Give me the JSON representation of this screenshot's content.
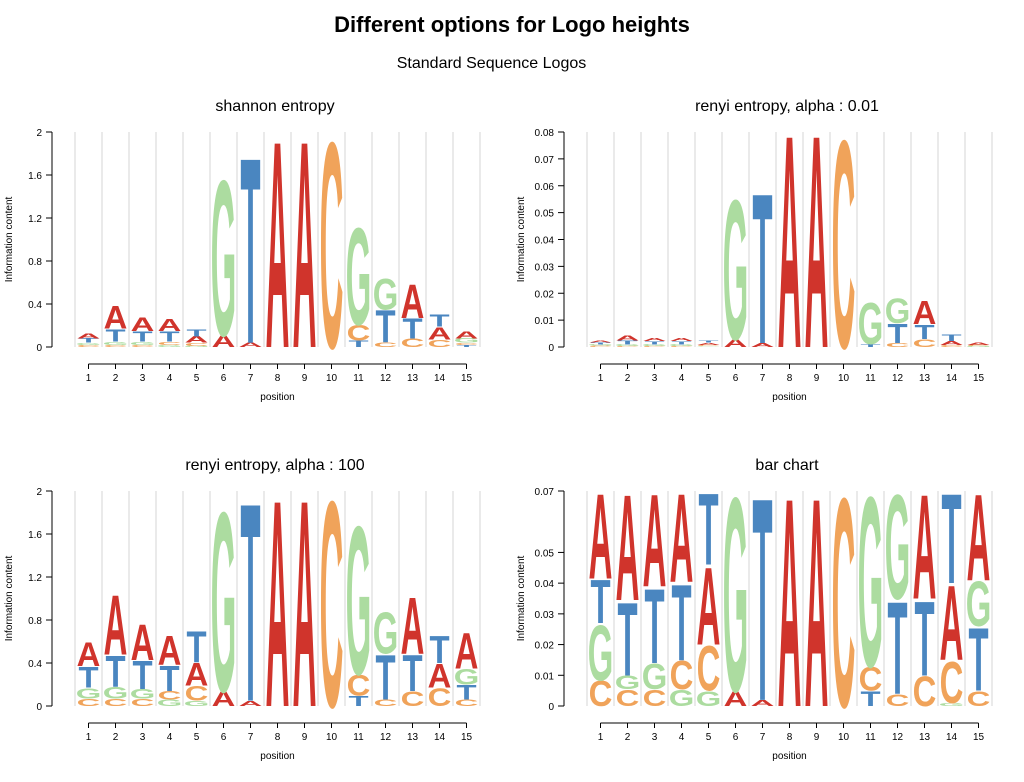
{
  "title": "Different options for Logo heights",
  "subtitle": "Standard Sequence Logos",
  "colors": {
    "A": "#d0342c",
    "C": "#f0a35a",
    "G": "#acdca0",
    "T": "#4a86c0"
  },
  "chart_data": [
    {
      "type": "sequence-logo",
      "title": "shannon entropy",
      "xlabel": "position",
      "ylabel": "Information content",
      "ylim": [
        0,
        2
      ],
      "yticks": [
        "0",
        "0.4",
        "0.8",
        "1.2",
        "1.6",
        "2"
      ],
      "ytick_values": [
        0,
        0.4,
        0.8,
        1.2,
        1.6,
        2
      ],
      "positions": [
        "1",
        "2",
        "3",
        "4",
        "5",
        "6",
        "7",
        "8",
        "9",
        "10",
        "11",
        "12",
        "13",
        "14",
        "15"
      ],
      "stacks": [
        [
          {
            "letter": "C",
            "value": 0.02
          },
          {
            "letter": "G",
            "value": 0.02
          },
          {
            "letter": "T",
            "value": 0.04
          },
          {
            "letter": "A",
            "value": 0.05
          }
        ],
        [
          {
            "letter": "C",
            "value": 0.02
          },
          {
            "letter": "G",
            "value": 0.03
          },
          {
            "letter": "T",
            "value": 0.12
          },
          {
            "letter": "A",
            "value": 0.22
          }
        ],
        [
          {
            "letter": "C",
            "value": 0.02
          },
          {
            "letter": "G",
            "value": 0.03
          },
          {
            "letter": "T",
            "value": 0.1
          },
          {
            "letter": "A",
            "value": 0.13
          }
        ],
        [
          {
            "letter": "G",
            "value": 0.02
          },
          {
            "letter": "C",
            "value": 0.03
          },
          {
            "letter": "T",
            "value": 0.1
          },
          {
            "letter": "A",
            "value": 0.12
          }
        ],
        [
          {
            "letter": "G",
            "value": 0.01
          },
          {
            "letter": "C",
            "value": 0.03
          },
          {
            "letter": "A",
            "value": 0.06
          },
          {
            "letter": "T",
            "value": 0.07
          }
        ],
        [
          {
            "letter": "A",
            "value": 0.11
          },
          {
            "letter": "G",
            "value": 1.49
          }
        ],
        [
          {
            "letter": "A",
            "value": 0.04
          },
          {
            "letter": "T",
            "value": 1.78
          }
        ],
        [
          {
            "letter": "A",
            "value": 1.98
          }
        ],
        [
          {
            "letter": "A",
            "value": 1.98
          }
        ],
        [
          {
            "letter": "C",
            "value": 1.97
          }
        ],
        [
          {
            "letter": "T",
            "value": 0.06
          },
          {
            "letter": "C",
            "value": 0.15
          },
          {
            "letter": "G",
            "value": 0.93
          }
        ],
        [
          {
            "letter": "C",
            "value": 0.04
          },
          {
            "letter": "T",
            "value": 0.31
          },
          {
            "letter": "G",
            "value": 0.3
          }
        ],
        [
          {
            "letter": "C",
            "value": 0.08
          },
          {
            "letter": "T",
            "value": 0.19
          },
          {
            "letter": "A",
            "value": 0.32
          }
        ],
        [
          {
            "letter": "C",
            "value": 0.07
          },
          {
            "letter": "A",
            "value": 0.12
          },
          {
            "letter": "T",
            "value": 0.12
          }
        ],
        [
          {
            "letter": "T",
            "value": 0.02
          },
          {
            "letter": "C",
            "value": 0.02
          },
          {
            "letter": "G",
            "value": 0.04
          },
          {
            "letter": "A",
            "value": 0.07
          }
        ]
      ]
    },
    {
      "type": "sequence-logo",
      "title": "renyi entropy, alpha : 0.01",
      "xlabel": "position",
      "ylabel": "Information content",
      "ylim": [
        0,
        0.08
      ],
      "yticks": [
        "0",
        "0.01",
        "0.02",
        "0.03",
        "0.04",
        "0.05",
        "0.06",
        "0.07",
        "0.08"
      ],
      "ytick_values": [
        0,
        0.01,
        0.02,
        0.03,
        0.04,
        0.05,
        0.06,
        0.07,
        0.08
      ],
      "positions": [
        "1",
        "2",
        "3",
        "4",
        "5",
        "6",
        "7",
        "8",
        "9",
        "10",
        "11",
        "12",
        "13",
        "14",
        "15"
      ],
      "stacks": [
        [
          {
            "letter": "C",
            "value": 0.0005
          },
          {
            "letter": "G",
            "value": 0.0005
          },
          {
            "letter": "T",
            "value": 0.0007
          },
          {
            "letter": "A",
            "value": 0.0008
          }
        ],
        [
          {
            "letter": "C",
            "value": 0.0004
          },
          {
            "letter": "G",
            "value": 0.0006
          },
          {
            "letter": "T",
            "value": 0.0015
          },
          {
            "letter": "A",
            "value": 0.002
          }
        ],
        [
          {
            "letter": "C",
            "value": 0.0004
          },
          {
            "letter": "G",
            "value": 0.0006
          },
          {
            "letter": "T",
            "value": 0.0012
          },
          {
            "letter": "A",
            "value": 0.0013
          }
        ],
        [
          {
            "letter": "C",
            "value": 0.0004
          },
          {
            "letter": "G",
            "value": 0.0006
          },
          {
            "letter": "T",
            "value": 0.0012
          },
          {
            "letter": "A",
            "value": 0.0012
          }
        ],
        [
          {
            "letter": "G",
            "value": 0.0003
          },
          {
            "letter": "C",
            "value": 0.0005
          },
          {
            "letter": "A",
            "value": 0.0008
          },
          {
            "letter": "T",
            "value": 0.0008
          }
        ],
        [
          {
            "letter": "A",
            "value": 0.003
          },
          {
            "letter": "G",
            "value": 0.0535
          }
        ],
        [
          {
            "letter": "A",
            "value": 0.0015
          },
          {
            "letter": "T",
            "value": 0.0575
          }
        ],
        [
          {
            "letter": "A",
            "value": 0.0815
          }
        ],
        [
          {
            "letter": "A",
            "value": 0.0815
          }
        ],
        [
          {
            "letter": "C",
            "value": 0.0795
          }
        ],
        [
          {
            "letter": "T",
            "value": 0.0012
          },
          {
            "letter": "G",
            "value": 0.016
          }
        ],
        [
          {
            "letter": "C",
            "value": 0.0015
          },
          {
            "letter": "T",
            "value": 0.0075
          },
          {
            "letter": "G",
            "value": 0.0095
          }
        ],
        [
          {
            "letter": "C",
            "value": 0.003
          },
          {
            "letter": "T",
            "value": 0.0055
          },
          {
            "letter": "A",
            "value": 0.009
          }
        ],
        [
          {
            "letter": "C",
            "value": 0.0008
          },
          {
            "letter": "A",
            "value": 0.0015
          },
          {
            "letter": "T",
            "value": 0.0025
          }
        ],
        [
          {
            "letter": "G",
            "value": 0.0004
          },
          {
            "letter": "C",
            "value": 0.0004
          },
          {
            "letter": "A",
            "value": 0.001
          }
        ]
      ]
    },
    {
      "type": "sequence-logo",
      "title": "renyi entropy, alpha : 100",
      "xlabel": "position",
      "ylabel": "Information content",
      "ylim": [
        0,
        2
      ],
      "yticks": [
        "0",
        "0.4",
        "0.8",
        "1.2",
        "1.6",
        "2"
      ],
      "ytick_values": [
        0,
        0.4,
        0.8,
        1.2,
        1.6,
        2
      ],
      "positions": [
        "1",
        "2",
        "3",
        "4",
        "5",
        "6",
        "7",
        "8",
        "9",
        "10",
        "11",
        "12",
        "13",
        "14",
        "15"
      ],
      "stacks": [
        [
          {
            "letter": "C",
            "value": 0.07
          },
          {
            "letter": "G",
            "value": 0.1
          },
          {
            "letter": "T",
            "value": 0.2
          },
          {
            "letter": "A",
            "value": 0.23
          }
        ],
        [
          {
            "letter": "C",
            "value": 0.07
          },
          {
            "letter": "G",
            "value": 0.11
          },
          {
            "letter": "T",
            "value": 0.3
          },
          {
            "letter": "A",
            "value": 0.57
          }
        ],
        [
          {
            "letter": "C",
            "value": 0.07
          },
          {
            "letter": "G",
            "value": 0.09
          },
          {
            "letter": "T",
            "value": 0.27
          },
          {
            "letter": "A",
            "value": 0.34
          }
        ],
        [
          {
            "letter": "G",
            "value": 0.06
          },
          {
            "letter": "C",
            "value": 0.08
          },
          {
            "letter": "T",
            "value": 0.24
          },
          {
            "letter": "A",
            "value": 0.28
          }
        ],
        [
          {
            "letter": "G",
            "value": 0.05
          },
          {
            "letter": "C",
            "value": 0.14
          },
          {
            "letter": "A",
            "value": 0.22
          },
          {
            "letter": "T",
            "value": 0.3
          }
        ],
        [
          {
            "letter": "A",
            "value": 0.14
          },
          {
            "letter": "G",
            "value": 1.72
          }
        ],
        [
          {
            "letter": "A",
            "value": 0.05
          },
          {
            "letter": "T",
            "value": 1.9
          }
        ],
        [
          {
            "letter": "A",
            "value": 1.98
          }
        ],
        [
          {
            "letter": "A",
            "value": 1.98
          }
        ],
        [
          {
            "letter": "C",
            "value": 1.97
          }
        ],
        [
          {
            "letter": "T",
            "value": 0.1
          },
          {
            "letter": "C",
            "value": 0.2
          },
          {
            "letter": "G",
            "value": 1.42
          }
        ],
        [
          {
            "letter": "C",
            "value": 0.06
          },
          {
            "letter": "T",
            "value": 0.43
          },
          {
            "letter": "G",
            "value": 0.4
          }
        ],
        [
          {
            "letter": "C",
            "value": 0.14
          },
          {
            "letter": "T",
            "value": 0.35
          },
          {
            "letter": "A",
            "value": 0.54
          }
        ],
        [
          {
            "letter": "C",
            "value": 0.17
          },
          {
            "letter": "A",
            "value": 0.23
          },
          {
            "letter": "T",
            "value": 0.26
          }
        ],
        [
          {
            "letter": "C",
            "value": 0.06
          },
          {
            "letter": "T",
            "value": 0.14
          },
          {
            "letter": "G",
            "value": 0.15
          },
          {
            "letter": "A",
            "value": 0.34
          }
        ]
      ]
    },
    {
      "type": "sequence-logo",
      "title": "bar chart",
      "xlabel": "position",
      "ylabel": "Information content",
      "ylim": [
        0,
        0.07
      ],
      "yticks": [
        "0",
        "0.01",
        "0.02",
        "0.03",
        "0.04",
        "0.05",
        "0.07"
      ],
      "ytick_values": [
        0,
        0.01,
        0.02,
        0.03,
        0.04,
        0.05,
        0.07
      ],
      "positions": [
        "1",
        "2",
        "3",
        "4",
        "5",
        "6",
        "7",
        "8",
        "9",
        "10",
        "11",
        "12",
        "13",
        "14",
        "15"
      ],
      "stacks": [
        [
          {
            "letter": "C",
            "value": 0.0085
          },
          {
            "letter": "G",
            "value": 0.0185
          },
          {
            "letter": "T",
            "value": 0.0145
          },
          {
            "letter": "A",
            "value": 0.0285
          }
        ],
        [
          {
            "letter": "C",
            "value": 0.0055
          },
          {
            "letter": "G",
            "value": 0.0045
          },
          {
            "letter": "T",
            "value": 0.0245
          },
          {
            "letter": "A",
            "value": 0.0355
          }
        ],
        [
          {
            "letter": "C",
            "value": 0.0055
          },
          {
            "letter": "G",
            "value": 0.0085
          },
          {
            "letter": "T",
            "value": 0.025
          },
          {
            "letter": "A",
            "value": 0.031
          }
        ],
        [
          {
            "letter": "G",
            "value": 0.0055
          },
          {
            "letter": "C",
            "value": 0.0095
          },
          {
            "letter": "T",
            "value": 0.0255
          },
          {
            "letter": "A",
            "value": 0.0295
          }
        ],
        [
          {
            "letter": "G",
            "value": 0.005
          },
          {
            "letter": "C",
            "value": 0.015
          },
          {
            "letter": "A",
            "value": 0.026
          },
          {
            "letter": "T",
            "value": 0.024
          }
        ],
        [
          {
            "letter": "A",
            "value": 0.005
          },
          {
            "letter": "G",
            "value": 0.065
          }
        ],
        [
          {
            "letter": "A",
            "value": 0.002
          },
          {
            "letter": "T",
            "value": 0.068
          }
        ],
        [
          {
            "letter": "A",
            "value": 0.07
          }
        ],
        [
          {
            "letter": "A",
            "value": 0.07
          }
        ],
        [
          {
            "letter": "C",
            "value": 0.07
          }
        ],
        [
          {
            "letter": "T",
            "value": 0.005
          },
          {
            "letter": "C",
            "value": 0.008
          },
          {
            "letter": "G",
            "value": 0.057
          }
        ],
        [
          {
            "letter": "C",
            "value": 0.004
          },
          {
            "letter": "T",
            "value": 0.031
          },
          {
            "letter": "G",
            "value": 0.035
          }
        ],
        [
          {
            "letter": "C",
            "value": 0.01
          },
          {
            "letter": "T",
            "value": 0.025
          },
          {
            "letter": "A",
            "value": 0.035
          }
        ],
        [
          {
            "letter": "G",
            "value": 0.001
          },
          {
            "letter": "C",
            "value": 0.014
          },
          {
            "letter": "A",
            "value": 0.025
          },
          {
            "letter": "T",
            "value": 0.03
          }
        ],
        [
          {
            "letter": "C",
            "value": 0.005
          },
          {
            "letter": "T",
            "value": 0.021
          },
          {
            "letter": "G",
            "value": 0.015
          },
          {
            "letter": "A",
            "value": 0.029
          }
        ]
      ]
    }
  ]
}
